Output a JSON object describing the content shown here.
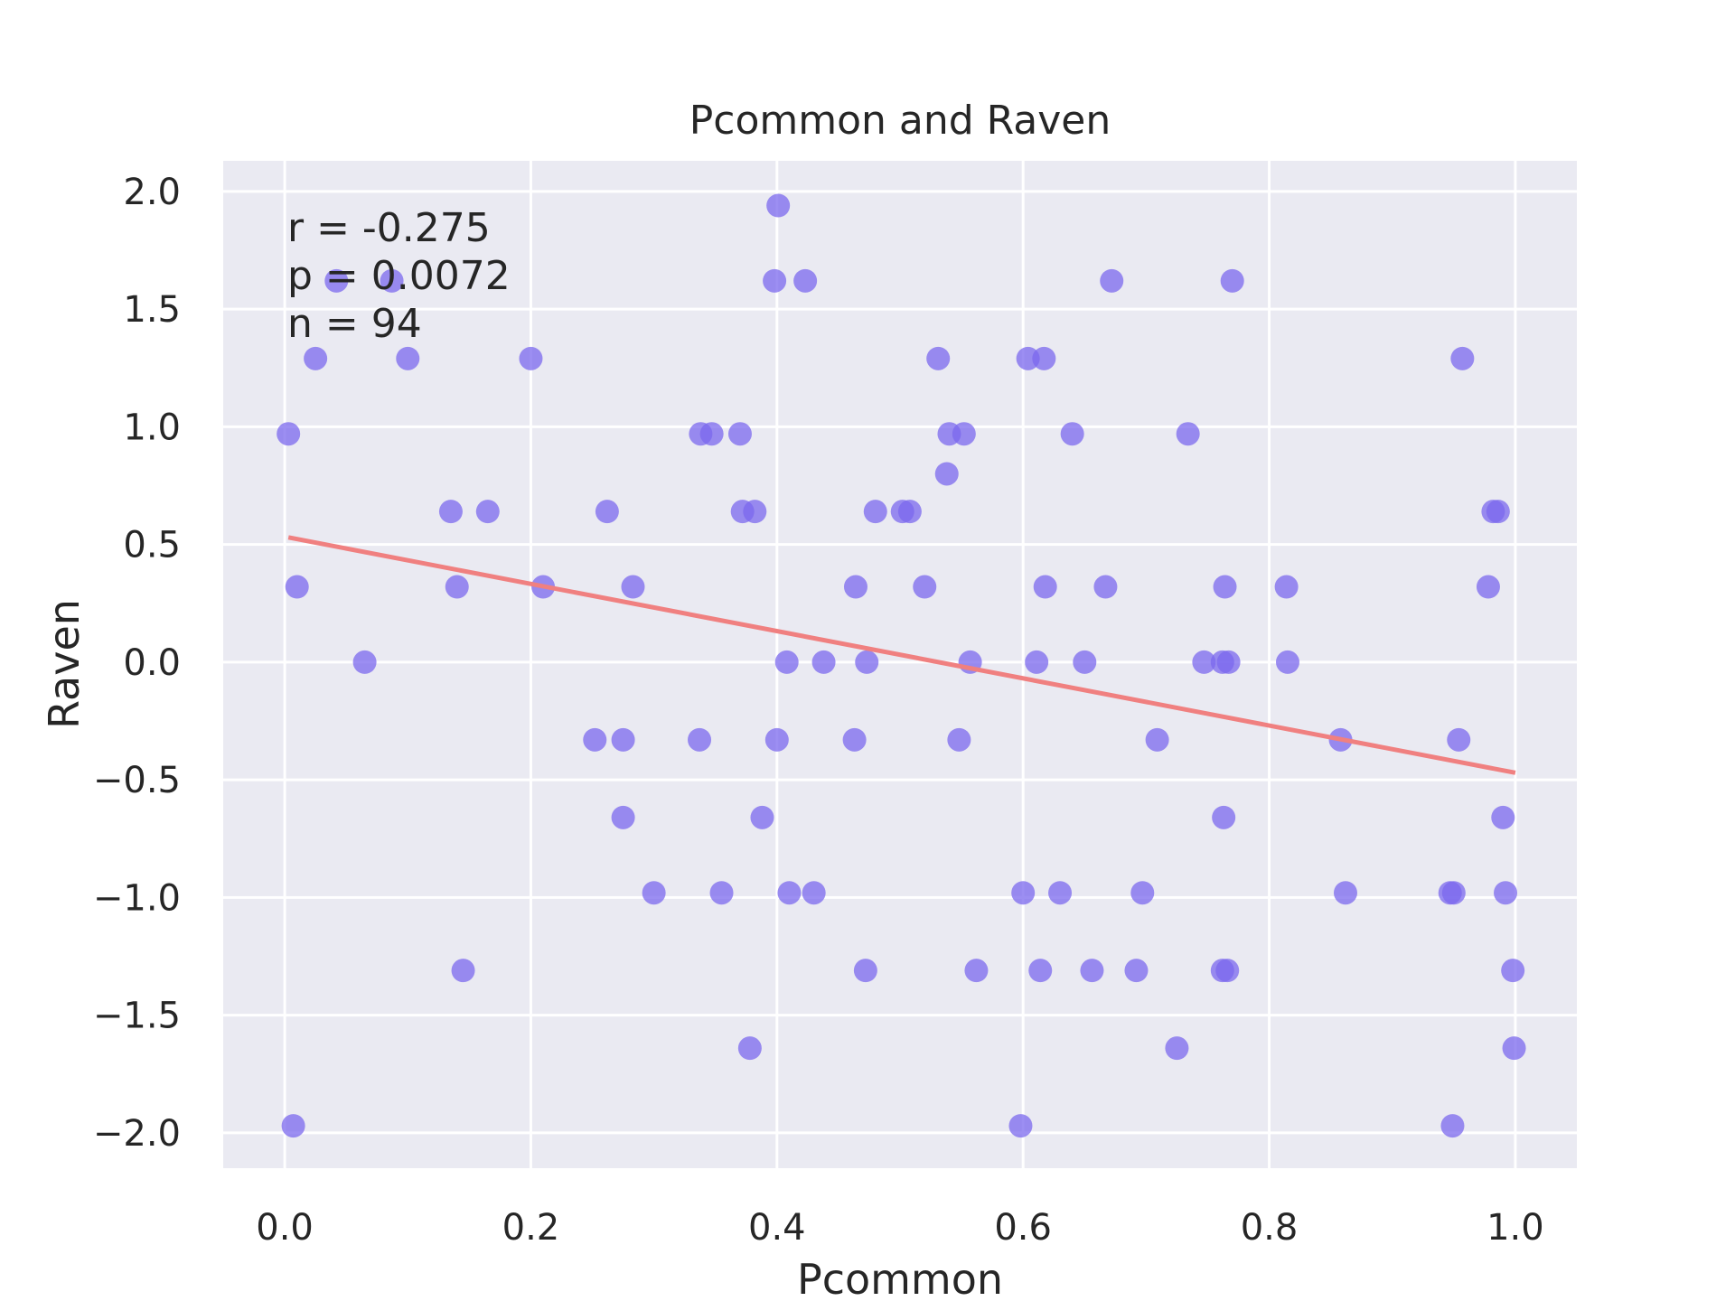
{
  "chart_data": {
    "type": "scatter",
    "title": "Pcommon and Raven",
    "xlabel": "Pcommon",
    "ylabel": "Raven",
    "xlim": [
      -0.05,
      1.05
    ],
    "ylim": [
      -2.15,
      2.13
    ],
    "xticks": [
      0.0,
      0.2,
      0.4,
      0.6,
      0.8,
      1.0
    ],
    "xtick_labels": [
      "0.0",
      "0.2",
      "0.4",
      "0.6",
      "0.8",
      "1.0"
    ],
    "yticks": [
      2.0,
      1.5,
      1.0,
      0.5,
      0.0,
      -0.5,
      -1.0,
      -1.5,
      -2.0
    ],
    "ytick_labels": [
      "2.0",
      "1.5",
      "1.0",
      "0.5",
      "0.0",
      "−0.5",
      "−1.0",
      "−1.5",
      "−2.0"
    ],
    "grid": true,
    "background": "#eaeaf2",
    "point_color": "#7b68ee",
    "line_color": "#f08080",
    "annotations": [
      "r = -0.275",
      "p = 0.0072",
      "n = 94"
    ],
    "fit_line": {
      "x": [
        0.003,
        1.0
      ],
      "y": [
        0.53,
        -0.47
      ]
    },
    "points": [
      [
        0.003,
        0.97
      ],
      [
        0.007,
        -1.97
      ],
      [
        0.01,
        0.32
      ],
      [
        0.025,
        1.29
      ],
      [
        0.042,
        1.62
      ],
      [
        0.065,
        0.0
      ],
      [
        0.087,
        1.62
      ],
      [
        0.1,
        1.29
      ],
      [
        0.135,
        0.64
      ],
      [
        0.14,
        0.32
      ],
      [
        0.145,
        -1.31
      ],
      [
        0.165,
        0.64
      ],
      [
        0.2,
        1.29
      ],
      [
        0.21,
        0.32
      ],
      [
        0.252,
        -0.33
      ],
      [
        0.262,
        0.64
      ],
      [
        0.275,
        -0.33
      ],
      [
        0.275,
        -0.66
      ],
      [
        0.283,
        0.32
      ],
      [
        0.3,
        -0.98
      ],
      [
        0.337,
        -0.33
      ],
      [
        0.338,
        0.97
      ],
      [
        0.347,
        0.97
      ],
      [
        0.355,
        -0.98
      ],
      [
        0.37,
        0.97
      ],
      [
        0.372,
        0.64
      ],
      [
        0.378,
        -1.64
      ],
      [
        0.382,
        0.64
      ],
      [
        0.388,
        -0.66
      ],
      [
        0.398,
        1.62
      ],
      [
        0.4,
        -0.33
      ],
      [
        0.401,
        1.94
      ],
      [
        0.408,
        0.0
      ],
      [
        0.41,
        -0.98
      ],
      [
        0.423,
        1.62
      ],
      [
        0.43,
        -0.98
      ],
      [
        0.438,
        0.0
      ],
      [
        0.463,
        -0.33
      ],
      [
        0.464,
        0.32
      ],
      [
        0.472,
        -1.31
      ],
      [
        0.473,
        0.0
      ],
      [
        0.48,
        0.64
      ],
      [
        0.502,
        0.64
      ],
      [
        0.508,
        0.64
      ],
      [
        0.52,
        0.32
      ],
      [
        0.531,
        1.29
      ],
      [
        0.538,
        0.8
      ],
      [
        0.54,
        0.97
      ],
      [
        0.548,
        -0.33
      ],
      [
        0.552,
        0.97
      ],
      [
        0.557,
        0.0
      ],
      [
        0.562,
        -1.31
      ],
      [
        0.598,
        -1.97
      ],
      [
        0.6,
        -0.98
      ],
      [
        0.604,
        1.29
      ],
      [
        0.611,
        0.0
      ],
      [
        0.614,
        -1.31
      ],
      [
        0.617,
        1.29
      ],
      [
        0.618,
        0.32
      ],
      [
        0.63,
        -0.98
      ],
      [
        0.64,
        0.97
      ],
      [
        0.65,
        0.0
      ],
      [
        0.656,
        -1.31
      ],
      [
        0.667,
        0.32
      ],
      [
        0.672,
        1.62
      ],
      [
        0.692,
        -1.31
      ],
      [
        0.697,
        -0.98
      ],
      [
        0.709,
        -0.33
      ],
      [
        0.725,
        -1.64
      ],
      [
        0.734,
        0.97
      ],
      [
        0.747,
        0.0
      ],
      [
        0.762,
        0.0
      ],
      [
        0.762,
        -1.31
      ],
      [
        0.763,
        -0.66
      ],
      [
        0.764,
        0.32
      ],
      [
        0.766,
        -1.31
      ],
      [
        0.767,
        0.0
      ],
      [
        0.77,
        1.62
      ],
      [
        0.814,
        0.32
      ],
      [
        0.815,
        0.0
      ],
      [
        0.858,
        -0.33
      ],
      [
        0.862,
        -0.98
      ],
      [
        0.947,
        -0.98
      ],
      [
        0.949,
        -1.97
      ],
      [
        0.95,
        -0.98
      ],
      [
        0.954,
        -0.33
      ],
      [
        0.957,
        1.29
      ],
      [
        0.978,
        0.32
      ],
      [
        0.982,
        0.64
      ],
      [
        0.986,
        0.64
      ],
      [
        0.99,
        -0.66
      ],
      [
        0.992,
        -0.98
      ],
      [
        0.998,
        -1.31
      ],
      [
        0.999,
        -1.64
      ]
    ]
  }
}
